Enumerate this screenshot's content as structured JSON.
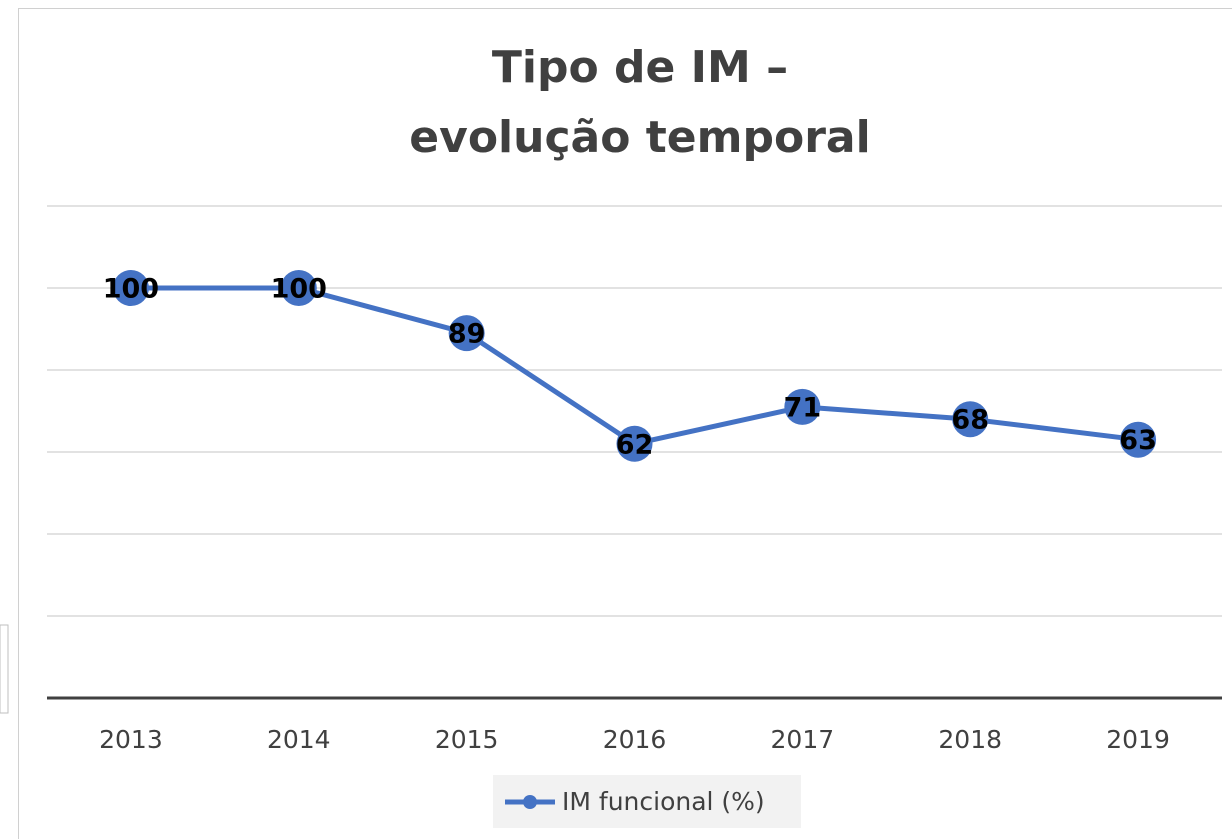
{
  "chart_data": {
    "type": "line",
    "title": [
      "Tipo de IM –",
      "evolução temporal"
    ],
    "categories": [
      "2013",
      "2014",
      "2015",
      "2016",
      "2017",
      "2018",
      "2019"
    ],
    "series": [
      {
        "name": "IM funcional (%)",
        "color": "#4472c4",
        "values": [
          100,
          100,
          89,
          62,
          71,
          68,
          63
        ]
      }
    ],
    "ylim": [
      0,
      120
    ],
    "yticks": [
      0,
      20,
      40,
      60,
      80,
      100,
      120
    ],
    "grid": true,
    "legend": "bottom"
  }
}
